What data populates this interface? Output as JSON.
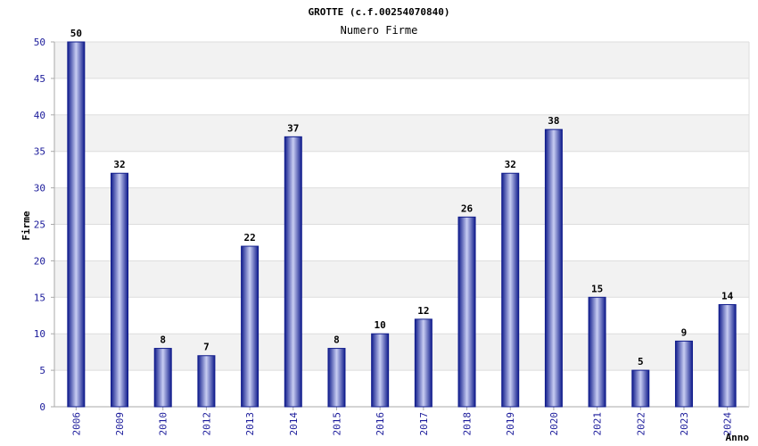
{
  "chart_data": {
    "type": "bar",
    "title": "GROTTE (c.f.00254070840)",
    "subtitle": "Numero Firme",
    "ylabel": "Firme",
    "xlabel": "Anno",
    "categories": [
      "2006",
      "2009",
      "2010",
      "2012",
      "2013",
      "2014",
      "2015",
      "2016",
      "2017",
      "2018",
      "2019",
      "2020",
      "2021",
      "2022",
      "2023",
      "2024"
    ],
    "values": [
      50,
      32,
      8,
      7,
      22,
      37,
      8,
      10,
      12,
      26,
      32,
      38,
      15,
      5,
      9,
      14
    ],
    "ylim": [
      0,
      50
    ],
    "yticks": [
      0,
      5,
      10,
      15,
      20,
      25,
      30,
      35,
      40,
      45,
      50
    ],
    "grid": true,
    "data_labels": true,
    "colors": {
      "bar_edge": "#101c8c",
      "bar_center": "#c8cdf2",
      "band": "#f2f2f2",
      "grid": "#dddddd",
      "tick_text": "#1a1a9a"
    }
  }
}
